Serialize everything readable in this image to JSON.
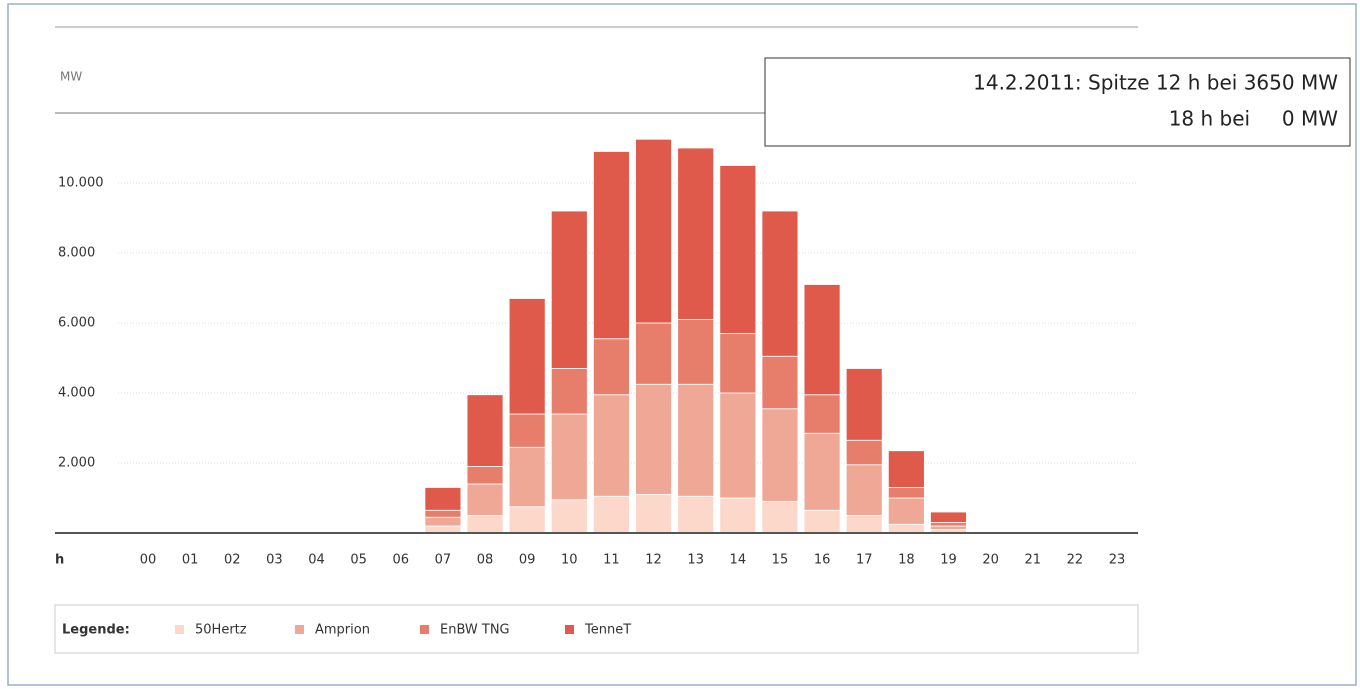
{
  "chart_data": {
    "type": "stacked_bar",
    "y_label": "MW",
    "x_label": "h",
    "annotations": [
      "14.2.2011: Spitze 12 h bei 3650 MW",
      "18 h bei     0 MW"
    ],
    "legend_title": "Legende:",
    "categories": [
      "00",
      "01",
      "02",
      "03",
      "04",
      "05",
      "06",
      "07",
      "08",
      "09",
      "10",
      "11",
      "12",
      "13",
      "14",
      "15",
      "16",
      "17",
      "18",
      "19",
      "20",
      "21",
      "22",
      "23"
    ],
    "series": [
      {
        "name": "50Hertz",
        "color": "#fbd8c9",
        "values": [
          0,
          0,
          0,
          0,
          0,
          0,
          0,
          200,
          500,
          750,
          950,
          1050,
          1100,
          1050,
          1000,
          900,
          650,
          500,
          250,
          100,
          0,
          0,
          0,
          0
        ]
      },
      {
        "name": "Amprion",
        "color": "#efa796",
        "values": [
          0,
          0,
          0,
          0,
          0,
          0,
          0,
          250,
          900,
          1700,
          2450,
          2900,
          3150,
          3200,
          3000,
          2650,
          2200,
          1450,
          750,
          100,
          0,
          0,
          0,
          0
        ]
      },
      {
        "name": "EnBW TNG",
        "color": "#e77d6b",
        "values": [
          0,
          0,
          0,
          0,
          0,
          0,
          0,
          200,
          500,
          950,
          1300,
          1600,
          1750,
          1850,
          1700,
          1500,
          1100,
          700,
          300,
          100,
          0,
          0,
          0,
          0
        ]
      },
      {
        "name": "TenneT",
        "color": "#df5a4a",
        "values": [
          0,
          0,
          0,
          0,
          0,
          0,
          0,
          650,
          2050,
          3300,
          4500,
          5350,
          5250,
          4900,
          4800,
          4150,
          3150,
          2050,
          1050,
          300,
          0,
          0,
          0,
          0
        ]
      }
    ],
    "ylim": [
      0,
      12000
    ],
    "yticks": [
      {
        "value": 2000,
        "label": "2.000"
      },
      {
        "value": 4000,
        "label": "4.000"
      },
      {
        "value": 6000,
        "label": "6.000"
      },
      {
        "value": 8000,
        "label": "8.000"
      },
      {
        "value": 10000,
        "label": "10.000"
      }
    ],
    "grid": true
  }
}
